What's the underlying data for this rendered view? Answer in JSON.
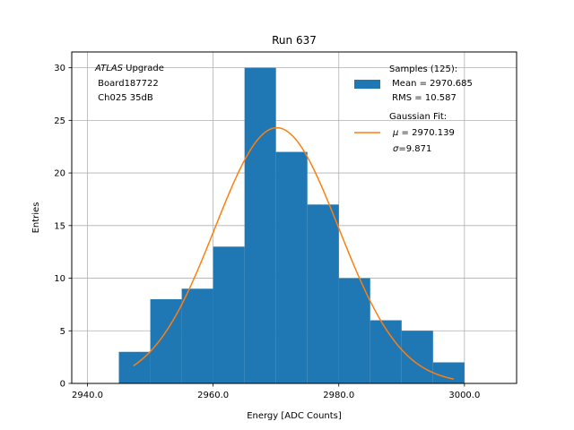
{
  "chart_data": {
    "type": "bar",
    "title": "Run 637",
    "xlabel": "Energy [ADC Counts]",
    "ylabel": "Entries",
    "xlim": [
      2937.5,
      3008.3
    ],
    "ylim": [
      0,
      31.5
    ],
    "xticks": [
      2940.0,
      2960.0,
      2980.0,
      3000.0
    ],
    "xtick_labels": [
      "2940.0",
      "2960.0",
      "2980.0",
      "3000.0"
    ],
    "yticks": [
      0,
      5,
      10,
      15,
      20,
      25,
      30
    ],
    "ytick_labels": [
      "0",
      "5",
      "10",
      "15",
      "20",
      "25",
      "30"
    ],
    "grid": true,
    "histogram": {
      "bin_edges": [
        2945,
        2950,
        2955,
        2960,
        2965,
        2970,
        2975,
        2980,
        2985,
        2990,
        2995,
        3000
      ],
      "counts": [
        3,
        8,
        9,
        13,
        30,
        22,
        17,
        10,
        6,
        5,
        2
      ],
      "color": "#1f77b4"
    },
    "fit": {
      "mu": 2970.139,
      "sigma": 9.871,
      "amplitude": 24.3,
      "x_range": [
        2947.3,
        2998.3
      ],
      "color": "#ff7f0e"
    },
    "annotation": {
      "italic": "ATLAS",
      "rest": " Upgrade",
      "line2": " Board187722",
      "line3": " Ch025 35dB"
    },
    "legend": {
      "position": "top-right",
      "samples": {
        "line1": "Samples (125):",
        "line2": " Mean = 2970.685",
        "line3": " RMS = 10.587"
      },
      "fit": {
        "line1": "Gaussian Fit:",
        "line2_sym": "μ",
        "line2_rest": " = 2970.139",
        "line3_sym": "σ",
        "line3_rest": "=9.871"
      }
    }
  }
}
